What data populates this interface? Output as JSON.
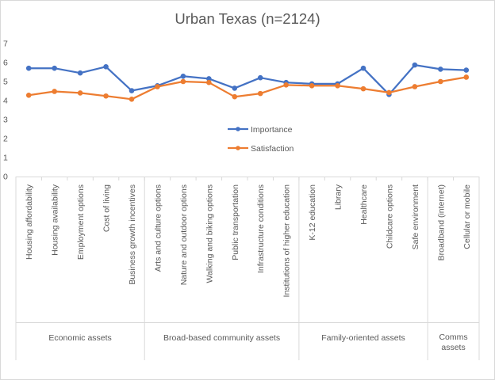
{
  "chart_data": {
    "type": "line",
    "title": "Urban Texas (n=2124)",
    "xlabel": "",
    "ylabel": "",
    "ylim": [
      0,
      7
    ],
    "yticks": [
      0,
      1,
      2,
      3,
      4,
      5,
      6,
      7
    ],
    "categories": [
      "Housing affordability",
      "Housing availability",
      "Employment options",
      "Cost of living",
      "Business growth incentives",
      "Arts and culture options",
      "Nature and outdoor options",
      "Walking and biking options",
      "Public transportation",
      "Infrastructure conditions",
      "Institutions of higher education",
      "K-12 education",
      "Library",
      "Healthcare",
      "Childcare options",
      "Safe environment",
      "Broadband (internet)",
      "Cellular or mobile"
    ],
    "groups": [
      {
        "label": "Economic assets",
        "lines": [
          "Economic assets"
        ],
        "start": 0,
        "end": 4
      },
      {
        "label": "Broad-based community assets",
        "lines": [
          "Broad-based community assets"
        ],
        "start": 5,
        "end": 10
      },
      {
        "label": "Family-oriented assets",
        "lines": [
          "Family-oriented assets"
        ],
        "start": 11,
        "end": 15
      },
      {
        "label": "Comms assets",
        "lines": [
          "Comms",
          "assets"
        ],
        "start": 16,
        "end": 17
      }
    ],
    "series": [
      {
        "name": "Importance",
        "color": "#4472c4",
        "values": [
          5.7,
          5.7,
          5.45,
          5.78,
          4.52,
          4.78,
          5.28,
          5.15,
          4.65,
          5.2,
          4.95,
          4.88,
          4.88,
          5.7,
          4.32,
          5.87,
          5.65,
          5.6
        ]
      },
      {
        "name": "Satisfaction",
        "color": "#ed7d31",
        "values": [
          4.28,
          4.48,
          4.4,
          4.24,
          4.07,
          4.73,
          5.0,
          4.95,
          4.2,
          4.37,
          4.82,
          4.78,
          4.78,
          4.62,
          4.42,
          4.73,
          5.0,
          5.23
        ]
      }
    ],
    "legend": "center, inside plot",
    "grid": false
  }
}
